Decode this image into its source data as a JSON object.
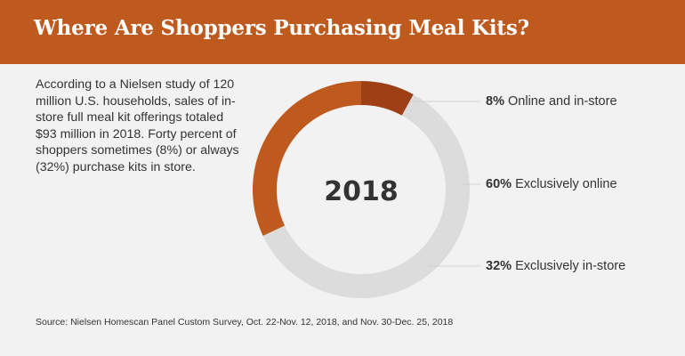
{
  "header": {
    "title": "Where Are Shoppers Purchasing Meal Kits?"
  },
  "description": "According to a Nielsen study of 120 million U.S. households, sales of in-store full meal kit offerings totaled $93 million in 2018. Forty percent of shoppers sometimes (8%) or always (32%) purchase kits in store.",
  "source": "Source: Nielsen Homescan Panel Custom Survey, Oct. 22-Nov. 12, 2018, and Nov. 30-Dec. 25, 2018",
  "colors": {
    "header_bg": "#bf5a1f",
    "online_and_instore": "#9e3f16",
    "exclusively_online": "#dcdcdc",
    "exclusively_instore": "#bf5a1f",
    "background": "#f2f2f2"
  },
  "chart_data": {
    "type": "pie",
    "center_label": "2018",
    "slices": [
      {
        "pct_label": "8%",
        "label": "Online and in-store",
        "value": 8,
        "color": "#9e3f16"
      },
      {
        "pct_label": "60%",
        "label": "Exclusively online",
        "value": 60,
        "color": "#dcdcdc"
      },
      {
        "pct_label": "32%",
        "label": "Exclusively in-store",
        "value": 32,
        "color": "#bf5a1f"
      }
    ]
  }
}
